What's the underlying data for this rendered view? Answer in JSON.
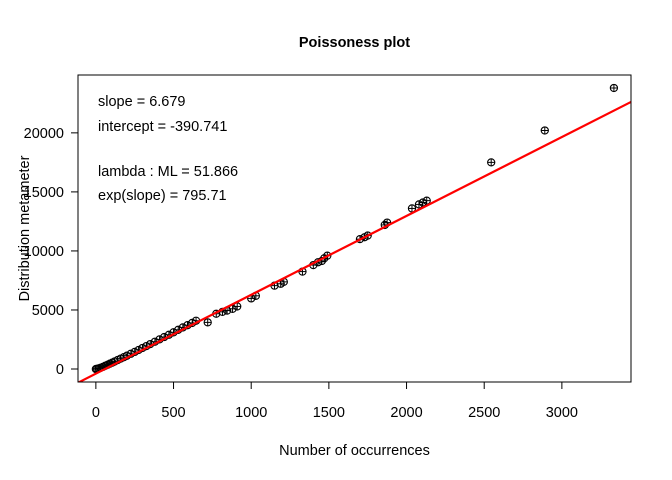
{
  "chart_data": {
    "type": "scatter",
    "title": "Poissoness plot",
    "xlabel": "Number of occurrences",
    "ylabel": "Distribution metameter",
    "xlim": [
      -115,
      3445
    ],
    "ylim": [
      -1100,
      24900
    ],
    "x_ticks": [
      0,
      500,
      1000,
      1500,
      2000,
      2500,
      3000
    ],
    "y_ticks": [
      0,
      5000,
      10000,
      15000,
      20000
    ],
    "annotations": [
      "slope = 6.679",
      "intercept = -390.741",
      "lambda : ML = 51.866",
      "exp(slope) = 795.71"
    ],
    "fit_line": {
      "slope": 6.679,
      "intercept": -390.741,
      "color": "#ff0000"
    },
    "series": [
      {
        "marker": "circle-plus",
        "x": [
          0,
          8,
          18,
          30,
          45,
          60,
          75,
          90,
          105,
          120,
          140,
          160,
          180,
          200,
          225,
          250,
          275,
          300,
          325,
          350,
          380,
          410,
          440,
          470,
          500,
          530,
          560,
          590,
          620,
          645,
          720,
          775,
          815,
          845,
          880,
          910,
          1000,
          1030,
          1150,
          1190,
          1210,
          1330,
          1400,
          1430,
          1455,
          1470,
          1490,
          1700,
          1730,
          1750,
          1860,
          1875,
          2035,
          2080,
          2105,
          2130,
          2545,
          2890,
          3335
        ],
        "y": [
          0,
          20,
          50,
          100,
          180,
          270,
          360,
          450,
          540,
          630,
          760,
          880,
          1000,
          1130,
          1290,
          1450,
          1610,
          1780,
          1940,
          2110,
          2310,
          2510,
          2710,
          2900,
          3110,
          3320,
          3520,
          3710,
          3900,
          4090,
          3950,
          4680,
          4840,
          4950,
          5100,
          5300,
          5980,
          6200,
          7060,
          7220,
          7380,
          8250,
          8800,
          9040,
          9150,
          9380,
          9600,
          11000,
          11160,
          11300,
          12200,
          12400,
          13600,
          13940,
          14100,
          14260,
          17500,
          20200,
          23800
        ]
      }
    ]
  }
}
